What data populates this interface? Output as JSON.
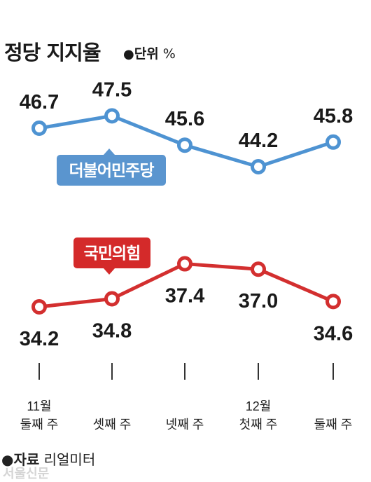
{
  "header": {
    "title": "정당 지지율",
    "unit_dot": "●",
    "unit_label": "단위",
    "unit_symbol": "%"
  },
  "chart_data": {
    "type": "line",
    "title": "정당 지지율",
    "unit": "%",
    "categories": [
      [
        "11월",
        "둘째 주"
      ],
      [
        "",
        "셋째 주"
      ],
      [
        "",
        "넷째 주"
      ],
      [
        "12월",
        "첫째 주"
      ],
      [
        "",
        "둘째 주"
      ]
    ],
    "series": [
      {
        "name": "더불어민주당",
        "color": "#4e93d2",
        "tag_color": "#5a95cf",
        "values": [
          46.7,
          47.5,
          45.6,
          44.2,
          45.8
        ],
        "labels": [
          "46.7",
          "47.5",
          "45.6",
          "44.2",
          "45.8"
        ]
      },
      {
        "name": "국민의힘",
        "color": "#d32f2f",
        "tag_color": "#d42a2a",
        "values": [
          34.2,
          34.8,
          37.4,
          37.0,
          34.6
        ],
        "labels": [
          "34.2",
          "34.8",
          "37.4",
          "37.0",
          "34.6"
        ]
      }
    ]
  },
  "footer": {
    "source_dot": "●",
    "source_label": "자료",
    "source_value": "리얼미터",
    "credit": "서울신문"
  }
}
